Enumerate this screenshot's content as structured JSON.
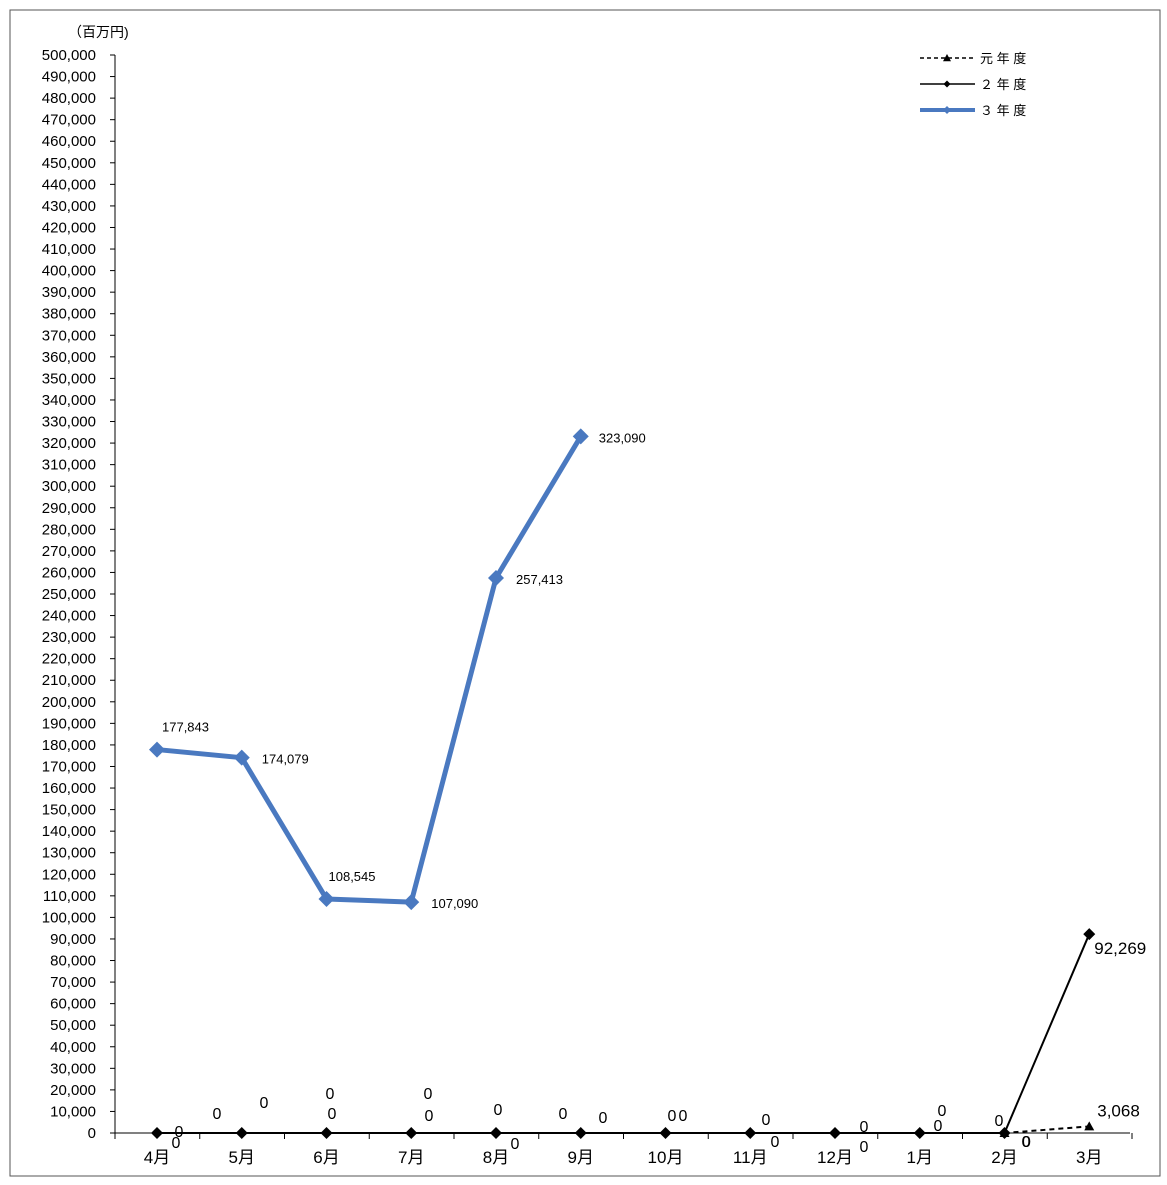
{
  "chart_data": {
    "type": "line",
    "ylabel": "（百万円)",
    "ylim": [
      0,
      500000
    ],
    "ytick_step": 10000,
    "grid": false,
    "legend_position": "top-right",
    "categories": [
      "4月",
      "5月",
      "6月",
      "7月",
      "8月",
      "9月",
      "10月",
      "11月",
      "12月",
      "1月",
      "2月",
      "3月"
    ],
    "series": [
      {
        "name": "元 年 度",
        "color": "#000000",
        "style": "dashed",
        "marker": "triangle",
        "values": [
          null,
          null,
          null,
          null,
          null,
          null,
          null,
          null,
          null,
          null,
          0,
          3068
        ],
        "labels": [
          null,
          null,
          null,
          null,
          null,
          null,
          null,
          null,
          null,
          null,
          "0",
          "3,068"
        ]
      },
      {
        "name": "２ 年 度",
        "color": "#000000",
        "style": "solid",
        "marker": "diamond",
        "values": [
          0,
          0,
          0,
          0,
          0,
          0,
          0,
          0,
          0,
          0,
          0,
          92269
        ],
        "labels": [
          "0",
          "0",
          "0",
          "0",
          "0",
          "0",
          "0",
          "0",
          "0",
          "0",
          "0",
          "92,269"
        ]
      },
      {
        "name": "３ 年 度",
        "color": "#4a79c0",
        "style": "solid",
        "marker": "diamond",
        "values": [
          177843,
          174079,
          108545,
          107090,
          257413,
          323090,
          null,
          null,
          null,
          null,
          null,
          null
        ],
        "labels": [
          "177,843",
          "174,079",
          "108,545",
          "107,090",
          "257,413",
          "323,090",
          null,
          null,
          null,
          null,
          null,
          null
        ]
      }
    ],
    "extra_zero_labels": [
      "0",
      "0",
      "0",
      "0",
      "0",
      "0",
      "0",
      "0",
      "0",
      "0",
      "0",
      "0"
    ]
  }
}
